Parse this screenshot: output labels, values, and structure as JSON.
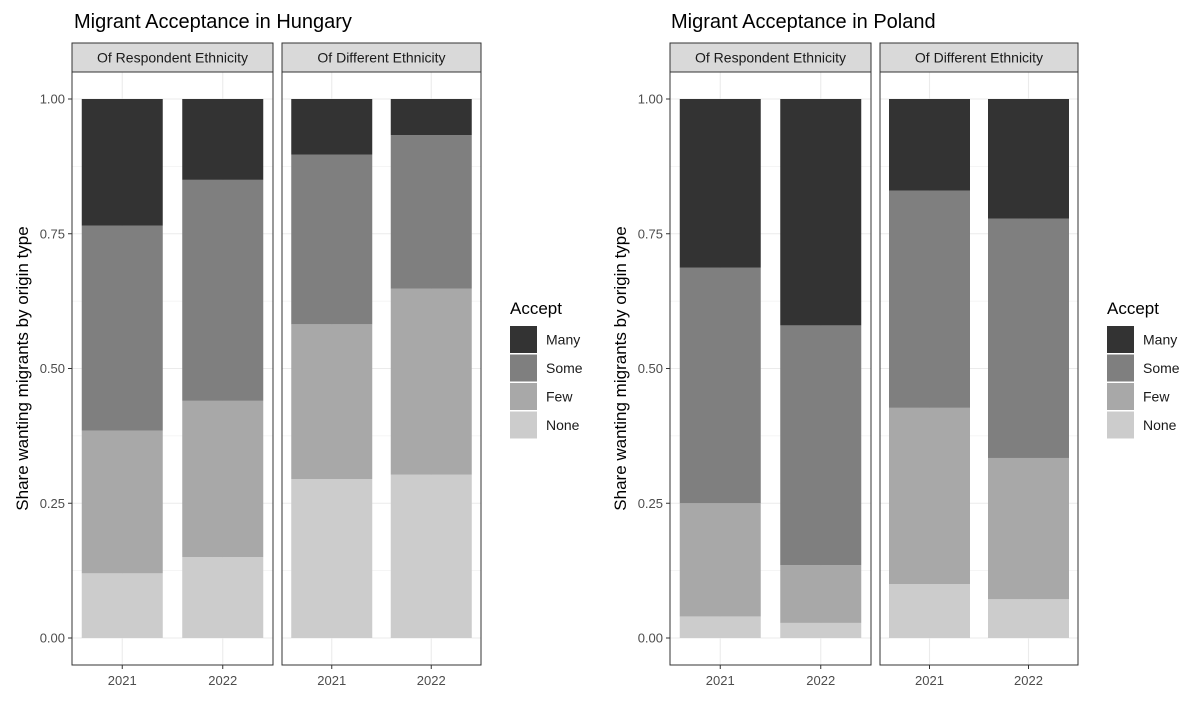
{
  "legend_title": "Accept",
  "legend_order": [
    "Many",
    "Some",
    "Few",
    "None"
  ],
  "colors": {
    "None": "#cccccc",
    "Few": "#a8a8a8",
    "Some": "#7f7f7f",
    "Many": "#333333",
    "strip_fill": "#d9d9d9",
    "grid": "#ebebeb",
    "frame": "#333333"
  },
  "chart_data": [
    {
      "type": "bar",
      "stacked": true,
      "title": "Migrant Acceptance in Hungary",
      "ylabel": "Share wanting migrants by origin type",
      "xlabel": "",
      "ylim": [
        0,
        1
      ],
      "yticks": [
        "0.00",
        "0.25",
        "0.50",
        "0.75",
        "1.00"
      ],
      "grid": true,
      "legend_position": "right",
      "facets": [
        {
          "label": "Of Respondent Ethnicity",
          "categories": [
            "2021",
            "2022"
          ],
          "series": [
            {
              "name": "None",
              "values": [
                0.12,
                0.15
              ]
            },
            {
              "name": "Few",
              "values": [
                0.265,
                0.29
              ]
            },
            {
              "name": "Some",
              "values": [
                0.38,
                0.41
              ]
            },
            {
              "name": "Many",
              "values": [
                0.235,
                0.15
              ]
            }
          ]
        },
        {
          "label": "Of Different Ethnicity",
          "categories": [
            "2021",
            "2022"
          ],
          "series": [
            {
              "name": "None",
              "values": [
                0.295,
                0.303
              ]
            },
            {
              "name": "Few",
              "values": [
                0.287,
                0.345
              ]
            },
            {
              "name": "Some",
              "values": [
                0.315,
                0.285
              ]
            },
            {
              "name": "Many",
              "values": [
                0.103,
                0.067
              ]
            }
          ]
        }
      ]
    },
    {
      "type": "bar",
      "stacked": true,
      "title": "Migrant Acceptance in Poland",
      "ylabel": "Share wanting migrants by origin type",
      "xlabel": "",
      "ylim": [
        0,
        1
      ],
      "yticks": [
        "0.00",
        "0.25",
        "0.50",
        "0.75",
        "1.00"
      ],
      "grid": true,
      "legend_position": "right",
      "facets": [
        {
          "label": "Of Respondent Ethnicity",
          "categories": [
            "2021",
            "2022"
          ],
          "series": [
            {
              "name": "None",
              "values": [
                0.04,
                0.028
              ]
            },
            {
              "name": "Few",
              "values": [
                0.21,
                0.107
              ]
            },
            {
              "name": "Some",
              "values": [
                0.437,
                0.445
              ]
            },
            {
              "name": "Many",
              "values": [
                0.313,
                0.42
              ]
            }
          ]
        },
        {
          "label": "Of Different Ethnicity",
          "categories": [
            "2021",
            "2022"
          ],
          "series": [
            {
              "name": "None",
              "values": [
                0.1,
                0.072
              ]
            },
            {
              "name": "Few",
              "values": [
                0.327,
                0.262
              ]
            },
            {
              "name": "Some",
              "values": [
                0.403,
                0.444
              ]
            },
            {
              "name": "Many",
              "values": [
                0.17,
                0.222
              ]
            }
          ]
        }
      ]
    }
  ]
}
